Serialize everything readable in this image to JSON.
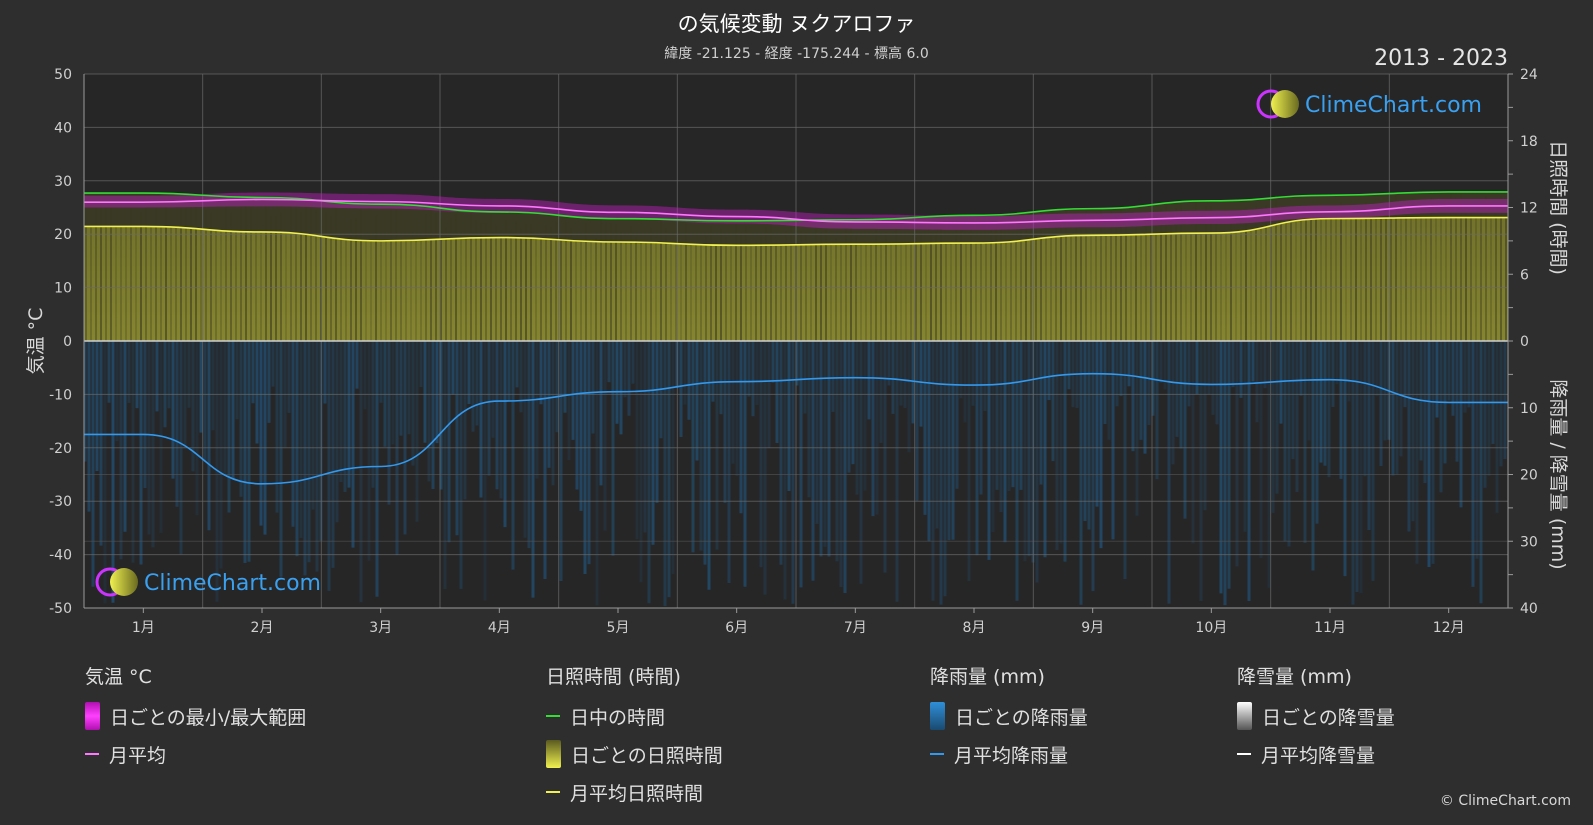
{
  "header": {
    "title": "の気候変動 ヌクアロファ",
    "subtitle": "緯度 -21.125 - 経度 -175.244 - 標高 6.0",
    "years": "2013 - 2023"
  },
  "watermark": {
    "text": "ClimeChart.com"
  },
  "copyright": "© ClimeChart.com",
  "chart_data": {
    "type": "area",
    "categories": [
      "1月",
      "2月",
      "3月",
      "4月",
      "5月",
      "6月",
      "7月",
      "8月",
      "9月",
      "10月",
      "11月",
      "12月"
    ],
    "y_left": {
      "label": "気温 °C",
      "range": [
        -50,
        50
      ],
      "ticks": [
        50,
        40,
        30,
        20,
        10,
        0,
        -10,
        -20,
        -30,
        -40,
        -50
      ]
    },
    "y_right_top": {
      "label": "日照時間 (時間)",
      "range": [
        0,
        24
      ],
      "ticks": [
        24,
        18,
        12,
        6,
        0
      ]
    },
    "y_right_bottom": {
      "label": "降雨量 / 降雪量 (mm)",
      "range": [
        0,
        40
      ],
      "ticks": [
        10,
        20,
        30,
        40
      ]
    },
    "grid": true,
    "series": [
      {
        "name": "日中の時間",
        "color": "#33dd33",
        "axis": "sunshine_hours",
        "values": [
          13.3,
          12.9,
          12.3,
          11.6,
          11.0,
          10.8,
          10.9,
          11.3,
          11.9,
          12.6,
          13.1,
          13.4
        ]
      },
      {
        "name": "月平均",
        "color": "#ff77ff",
        "axis": "temperature_c",
        "values": [
          26.0,
          26.5,
          26.1,
          25.3,
          24.1,
          23.3,
          22.3,
          22.1,
          22.6,
          23.1,
          24.2,
          25.3
        ]
      },
      {
        "name": "月平均日照時間",
        "color": "#f0f050",
        "axis": "sunshine_hours",
        "values": [
          10.3,
          9.8,
          9.0,
          9.3,
          8.9,
          8.6,
          8.7,
          8.8,
          9.5,
          9.7,
          11.0,
          11.1
        ]
      },
      {
        "name": "月平均降雨量",
        "color": "#3399ee",
        "axis": "rain_mm",
        "values": [
          14.0,
          21.4,
          18.8,
          9.0,
          7.6,
          6.1,
          5.5,
          6.6,
          4.9,
          6.5,
          5.8,
          9.2
        ]
      },
      {
        "name": "月平均降雪量",
        "color": "#ffffff",
        "axis": "snow_mm",
        "values": [
          0,
          0,
          0,
          0,
          0,
          0,
          0,
          0,
          0,
          0,
          0,
          0
        ]
      }
    ],
    "daily_range": {
      "name": "日ごとの最小/最大範囲",
      "min": [
        25.0,
        25.2,
        24.8,
        24.0,
        22.8,
        22.0,
        21.0,
        20.8,
        21.3,
        21.9,
        23.0,
        24.0
      ],
      "max": [
        27.2,
        27.8,
        27.5,
        26.6,
        25.4,
        24.6,
        23.7,
        23.4,
        23.9,
        24.4,
        25.4,
        26.6
      ]
    },
    "daily_sunshine_label": "日ごとの日照時間",
    "daily_rain_label": "日ごとの降雨量",
    "daily_snow_label": "日ごとの降雪量"
  },
  "legend": {
    "groups": [
      {
        "title": "気温 °C",
        "items": [
          {
            "label": "日ごとの最小/最大範囲",
            "swatch": "box",
            "color": "#e020e0"
          },
          {
            "label": "月平均",
            "swatch": "line",
            "color": "#ff77ff"
          }
        ]
      },
      {
        "title": "日照時間 (時間)",
        "items": [
          {
            "label": "日中の時間",
            "swatch": "line",
            "color": "#33dd33"
          },
          {
            "label": "日ごとの日照時間",
            "swatch": "box",
            "color": "#c8c840"
          },
          {
            "label": "月平均日照時間",
            "swatch": "line",
            "color": "#f0f050"
          }
        ]
      },
      {
        "title": "降雨量 (mm)",
        "items": [
          {
            "label": "日ごとの降雨量",
            "swatch": "box",
            "color": "#2f8fd8"
          },
          {
            "label": "月平均降雨量",
            "swatch": "line",
            "color": "#3399ee"
          }
        ]
      },
      {
        "title": "降雪量 (mm)",
        "items": [
          {
            "label": "日ごとの降雪量",
            "swatch": "box",
            "color": "#e8e8e8"
          },
          {
            "label": "月平均降雪量",
            "swatch": "line",
            "color": "#ffffff"
          }
        ]
      }
    ]
  }
}
